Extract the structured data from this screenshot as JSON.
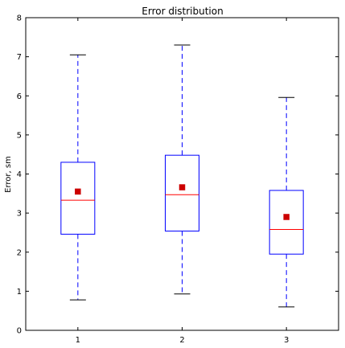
{
  "chart_data": {
    "type": "box",
    "title": "Error distribution",
    "xlabel": "",
    "ylabel": "Error, sm",
    "categories": [
      "1",
      "2",
      "3"
    ],
    "xlim": [
      0.5,
      3.5
    ],
    "ylim": [
      0,
      8
    ],
    "y_ticks": [
      "0",
      "1",
      "2",
      "3",
      "4",
      "5",
      "6",
      "7",
      "8"
    ],
    "grid": false,
    "boxes": [
      {
        "category": "1",
        "whisker_low": 0.78,
        "q1": 2.46,
        "median": 3.33,
        "q3": 4.3,
        "whisker_high": 7.05,
        "mean": 3.55
      },
      {
        "category": "2",
        "whisker_low": 0.93,
        "q1": 2.54,
        "median": 3.47,
        "q3": 4.48,
        "whisker_high": 7.3,
        "mean": 3.66
      },
      {
        "category": "3",
        "whisker_low": 0.6,
        "q1": 1.95,
        "median": 2.58,
        "q3": 3.58,
        "whisker_high": 5.96,
        "mean": 2.9
      }
    ],
    "colors": {
      "box": "#0000ff",
      "median": "#ff0000",
      "mean": "#cc0000",
      "whisker": "#0000ff",
      "cap": "#000000"
    }
  }
}
